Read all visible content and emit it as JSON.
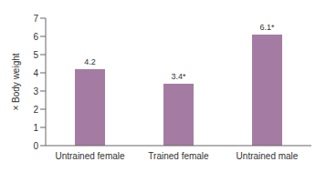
{
  "chart_data": {
    "type": "bar",
    "categories": [
      "Untrained female",
      "Trained female",
      "Untrained male"
    ],
    "values": [
      4.2,
      3.4,
      6.1
    ],
    "value_labels": [
      "4.2",
      "3.4*",
      "6.1*"
    ],
    "data_labels": true,
    "color": "#a47ca3",
    "y_label": "× Body weight",
    "ylim": [
      0,
      7
    ],
    "yticks": [
      0,
      1,
      2,
      3,
      4,
      5,
      6,
      7
    ],
    "grid": false
  }
}
